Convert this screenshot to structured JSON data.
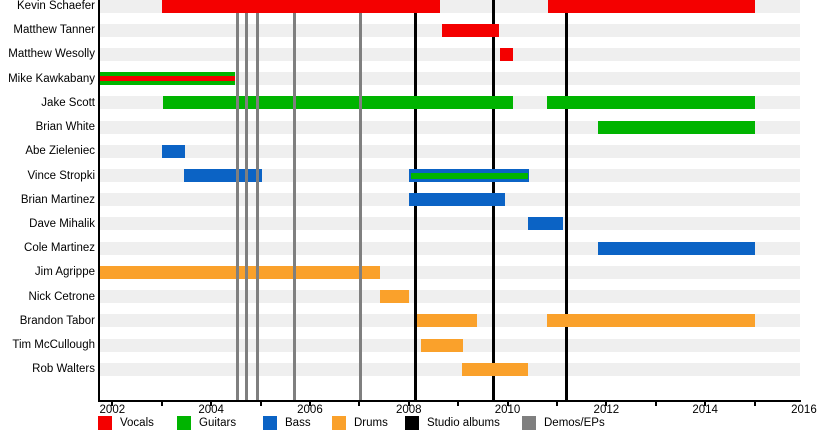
{
  "chart_data": {
    "type": "bar",
    "variant": "gantt-band-member-timeline",
    "title": "",
    "xlabel": "",
    "ylabel": "",
    "grid": false,
    "legend_position": "bottom",
    "xlim": [
      2001.73,
      2015.92
    ],
    "x_tick_start": 2002,
    "x_tick_end": 2016,
    "x_tick_label_years": [
      2002,
      2004,
      2006,
      2008,
      2010,
      2012,
      2014,
      2016
    ],
    "roles": {
      "vocals": "#f40000",
      "guitars": "#00b400",
      "bass": "#0b63c5",
      "drums": "#faa12b"
    },
    "members": [
      {
        "name": "Kevin Schaefer",
        "role": "vocals",
        "periods": [
          [
            2003.0,
            2008.64
          ],
          [
            2010.82,
            2015.0
          ]
        ]
      },
      {
        "name": "Matthew Tanner",
        "role": "vocals",
        "periods": [
          [
            2008.68,
            2009.82
          ]
        ]
      },
      {
        "name": "Matthew Wesolly",
        "role": "vocals",
        "periods": [
          [
            2009.85,
            2010.12
          ]
        ]
      },
      {
        "name": "Mike Kawkabany",
        "role": "guitars",
        "periods": [
          [
            2001.73,
            2004.48
          ]
        ],
        "overlay": {
          "role": "vocals",
          "start": 2001.73,
          "end": 2004.48,
          "height": 5
        }
      },
      {
        "name": "Jake Scott",
        "role": "guitars",
        "periods": [
          [
            2003.03,
            2010.12
          ],
          [
            2010.8,
            2015.0
          ]
        ]
      },
      {
        "name": "Brian White",
        "role": "guitars",
        "periods": [
          [
            2011.83,
            2015.0
          ]
        ]
      },
      {
        "name": "Abe Zieleniec",
        "role": "bass",
        "periods": [
          [
            2003.0,
            2003.47
          ]
        ]
      },
      {
        "name": "Vince Stropki",
        "role": "bass",
        "periods": [
          [
            2003.45,
            2005.03
          ],
          [
            2008.0,
            2010.43
          ]
        ],
        "overlay": {
          "role": "guitars",
          "start": 2008.04,
          "end": 2010.41,
          "height": 6
        }
      },
      {
        "name": "Brian Martinez",
        "role": "bass",
        "periods": [
          [
            2008.0,
            2009.95
          ]
        ]
      },
      {
        "name": "Dave Mihalik",
        "role": "bass",
        "periods": [
          [
            2010.41,
            2011.12
          ]
        ]
      },
      {
        "name": "Cole Martinez",
        "role": "bass",
        "periods": [
          [
            2011.83,
            2015.0
          ]
        ]
      },
      {
        "name": "Jim Agrippe",
        "role": "drums",
        "periods": [
          [
            2001.73,
            2007.42
          ]
        ]
      },
      {
        "name": "Nick Cetrone",
        "role": "drums",
        "periods": [
          [
            2007.42,
            2008.0
          ]
        ]
      },
      {
        "name": "Brandon Tabor",
        "role": "drums",
        "periods": [
          [
            2008.17,
            2009.38
          ],
          [
            2010.8,
            2015.0
          ]
        ]
      },
      {
        "name": "Tim McCullough",
        "role": "drums",
        "periods": [
          [
            2008.25,
            2009.1
          ]
        ]
      },
      {
        "name": "Rob Walters",
        "role": "drums",
        "periods": [
          [
            2009.08,
            2010.42
          ]
        ]
      }
    ],
    "event_lines": {
      "studio_albums": {
        "label": "Studio albums",
        "color": "#000000",
        "years": [
          2008.13,
          2009.71,
          2011.2
        ]
      },
      "demos_eps": {
        "label": "Demos/EPs",
        "color": "#7f7f7f",
        "years": [
          2004.53,
          2004.72,
          2004.94,
          2005.68,
          2007.02
        ]
      }
    },
    "legend": [
      {
        "label": "Vocals",
        "color": "#f40000",
        "x": 98
      },
      {
        "label": "Guitars",
        "color": "#00b400",
        "x": 177
      },
      {
        "label": "Bass",
        "color": "#0b63c5",
        "x": 263
      },
      {
        "label": "Drums",
        "color": "#faa12b",
        "x": 332
      },
      {
        "label": "Studio albums",
        "color": "#000000",
        "x": 405
      },
      {
        "label": "Demos/EPs",
        "color": "#7f7f7f",
        "x": 522
      }
    ]
  }
}
